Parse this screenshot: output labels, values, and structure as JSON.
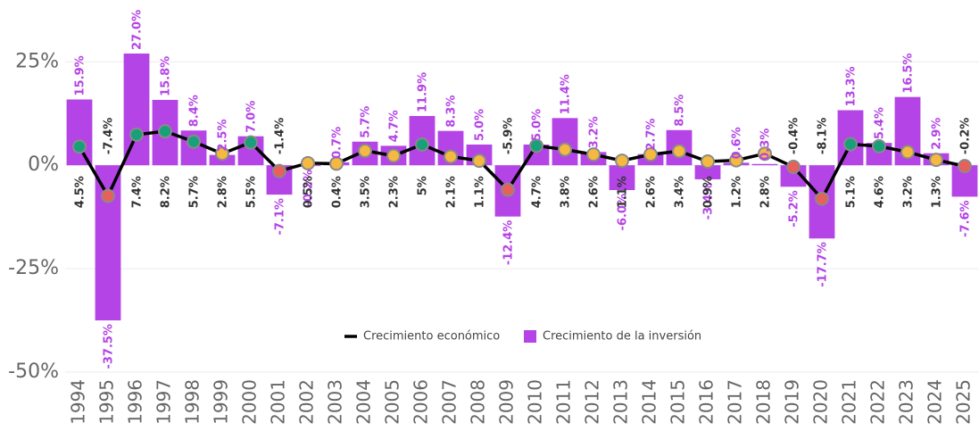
{
  "chart_data": {
    "type": "bar_line",
    "categories": [
      "1994",
      "1995",
      "1996",
      "1997",
      "1998",
      "1999",
      "2000",
      "2001",
      "2002",
      "2003",
      "2004",
      "2005",
      "2006",
      "2007",
      "2008",
      "2009",
      "2010",
      "2011",
      "2012",
      "2013",
      "2014",
      "2015",
      "2016",
      "2017",
      "2018",
      "2019",
      "2020",
      "2021",
      "2022",
      "2023",
      "2024",
      "2025"
    ],
    "series": [
      {
        "name": "Crecimiento de la inversión",
        "type": "bar",
        "color": "#b444e6",
        "values": [
          15.9,
          -37.5,
          27.0,
          15.8,
          8.4,
          2.5,
          7.0,
          -7.1,
          -0.2,
          0.7,
          5.7,
          4.7,
          11.9,
          8.3,
          5.0,
          -12.4,
          5.0,
          11.4,
          3.2,
          -6.0,
          2.7,
          8.5,
          -3.4,
          0.6,
          0.3,
          -5.2,
          -17.7,
          13.3,
          5.4,
          16.5,
          2.9,
          -7.6
        ],
        "value_labels": [
          "15.9%",
          "-37.5%",
          "27.0%",
          "15.8%",
          "8.4%",
          "2.5%",
          "7.0%",
          "-7.1%",
          "-0.2%",
          "0.7%",
          "5.7%",
          "4.7%",
          "11.9%",
          "8.3%",
          "5.0%",
          "-12.4%",
          "5.0%",
          "11.4%",
          "3.2%",
          "-6.0%",
          "2.7%",
          "8.5%",
          "-3.4%",
          "0.6%",
          "0.3%",
          "-5.2%",
          "-17.7%",
          "13.3%",
          "5.4%",
          "16.5%",
          "2.9%",
          "-7.6%"
        ]
      },
      {
        "name": "Crecimiento económico",
        "type": "line",
        "color": "#000000",
        "values": [
          4.5,
          -7.4,
          7.4,
          8.2,
          5.7,
          2.8,
          5.5,
          -1.4,
          0.5,
          0.4,
          3.5,
          2.3,
          5,
          2.1,
          1.1,
          -5.9,
          4.7,
          3.8,
          2.6,
          1.1,
          2.6,
          3.4,
          0.9,
          1.2,
          2.8,
          -0.4,
          -8.1,
          5.1,
          4.6,
          3.2,
          1.3,
          -0.2
        ],
        "value_labels": [
          "4.5%",
          "-7.4%",
          "7.4%",
          "8.2%",
          "5.7%",
          "2.8%",
          "5.5%",
          "-1.4%",
          "0.5%",
          "0.4%",
          "3.5%",
          "2.3%",
          "5%",
          "2.1%",
          "1.1%",
          "-5.9%",
          "4.7%",
          "3.8%",
          "2.6%",
          "1.1%",
          "2.6%",
          "3.4%",
          "0.9%",
          "1.2%",
          "2.8%",
          "-0.4%",
          "-8.1%",
          "5.1%",
          "4.6%",
          "3.2%",
          "1.3%",
          "-0.2%"
        ],
        "marker_colors": [
          "#17a07a",
          "#e8605a",
          "#17a07a",
          "#17a07a",
          "#17a07a",
          "#f5b841",
          "#17a07a",
          "#e8605a",
          "#f5b841",
          "#f5b841",
          "#f5b841",
          "#f5b841",
          "#17a07a",
          "#f5b841",
          "#f5b841",
          "#e8605a",
          "#17a07a",
          "#f5b841",
          "#f5b841",
          "#f5b841",
          "#f5b841",
          "#f5b841",
          "#f5b841",
          "#f5b841",
          "#f5b841",
          "#e8605a",
          "#e8605a",
          "#17a07a",
          "#17a07a",
          "#f5b841",
          "#f5b841",
          "#e8605a"
        ]
      }
    ],
    "ylim": [
      -50,
      38
    ],
    "yticks": [
      {
        "value": -50,
        "label": "-50%"
      },
      {
        "value": -25,
        "label": "-25%"
      },
      {
        "value": 0,
        "label": "0%"
      },
      {
        "value": 25,
        "label": "25%"
      }
    ],
    "grid": true,
    "legend": "bottom-center"
  }
}
